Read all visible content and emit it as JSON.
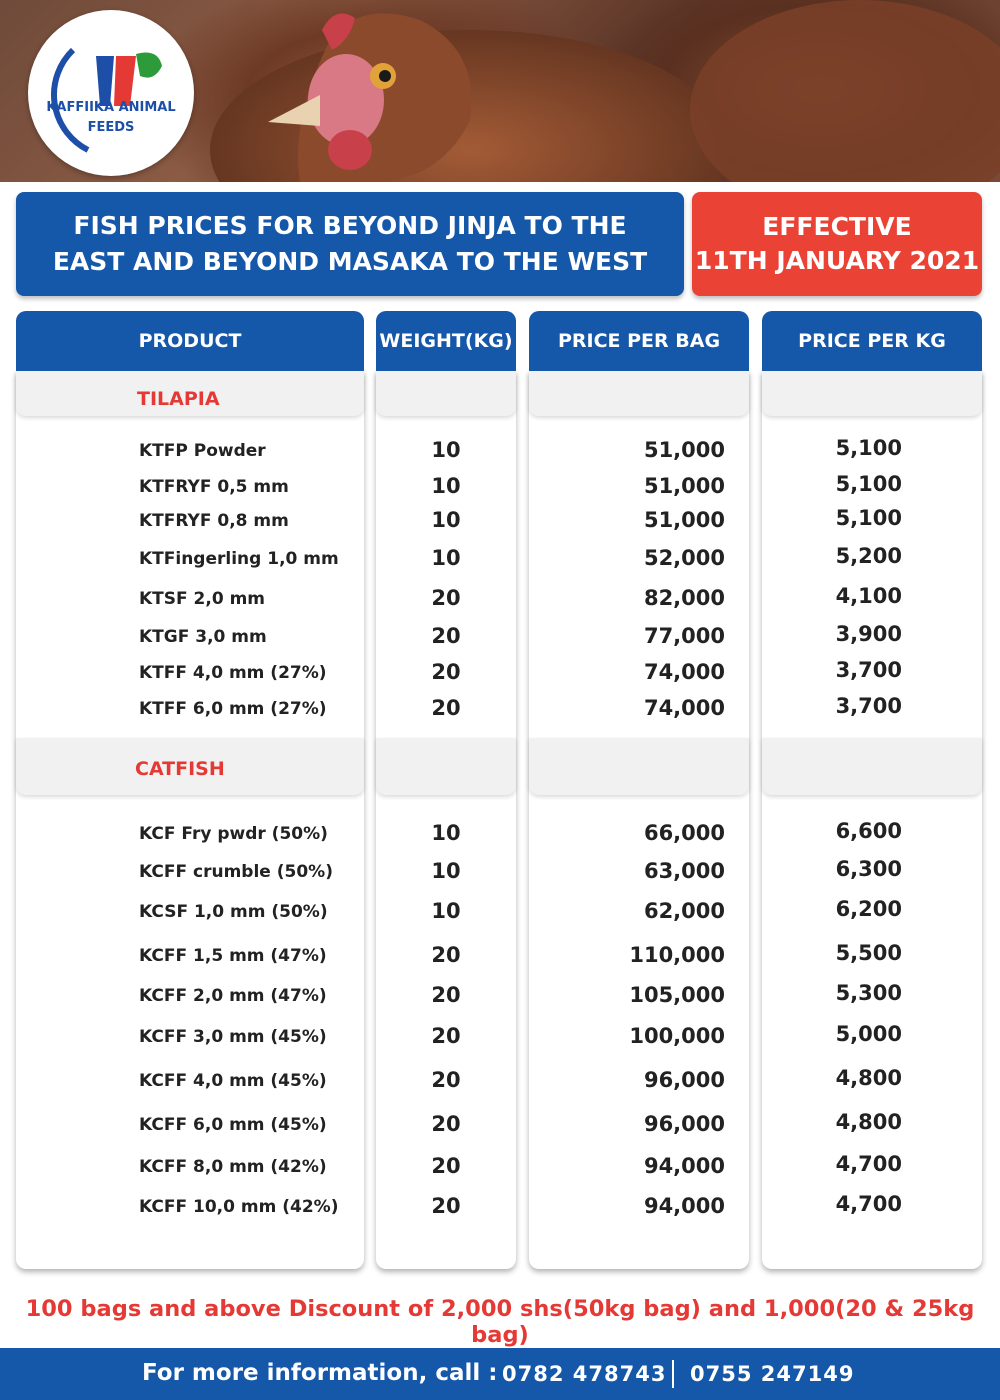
{
  "brand": {
    "line1": "KAFFIIKA ANIMAL",
    "line2": "FEEDS"
  },
  "title": {
    "line1": "FISH PRICES FOR BEYOND JINJA TO THE",
    "line2": "EAST AND BEYOND MASAKA TO THE WEST"
  },
  "effective": {
    "line1": "EFFECTIVE",
    "line2": "11TH JANUARY 2021"
  },
  "columns": {
    "product": "PRODUCT",
    "weight": "WEIGHT(KG)",
    "bag": "PRICE PER BAG",
    "kg": "PRICE PER KG"
  },
  "tilapia": {
    "label": "TILAPIA",
    "rows": [
      {
        "name": "KTFP Powder",
        "weight": "10",
        "bag": "51,000",
        "kg": "5,100"
      },
      {
        "name": "KTFRYF 0,5 mm",
        "weight": "10",
        "bag": "51,000",
        "kg": "5,100"
      },
      {
        "name": "KTFRYF 0,8 mm",
        "weight": "10",
        "bag": "51,000",
        "kg": "5,100"
      },
      {
        "name": "KTFingerling 1,0 mm",
        "weight": "10",
        "bag": "52,000",
        "kg": "5,200"
      },
      {
        "name": "KTSF 2,0 mm",
        "weight": "20",
        "bag": "82,000",
        "kg": "4,100"
      },
      {
        "name": "KTGF 3,0 mm",
        "weight": "20",
        "bag": "77,000",
        "kg": "3,900"
      },
      {
        "name": "KTFF 4,0 mm (27%)",
        "weight": "20",
        "bag": "74,000",
        "kg": "3,700"
      },
      {
        "name": "KTFF 6,0 mm (27%)",
        "weight": "20",
        "bag": "74,000",
        "kg": "3,700"
      }
    ]
  },
  "catfish": {
    "label": "CATFISH",
    "rows": [
      {
        "name": "KCF Fry pwdr (50%)",
        "weight": "10",
        "bag": "66,000",
        "kg": "6,600"
      },
      {
        "name": "KCFF crumble (50%)",
        "weight": "10",
        "bag": "63,000",
        "kg": "6,300"
      },
      {
        "name": "KCSF 1,0 mm (50%)",
        "weight": "10",
        "bag": "62,000",
        "kg": "6,200"
      },
      {
        "name": "KCFF 1,5 mm (47%)",
        "weight": "20",
        "bag": "110,000",
        "kg": "5,500"
      },
      {
        "name": "KCFF 2,0 mm (47%)",
        "weight": "20",
        "bag": "105,000",
        "kg": "5,300"
      },
      {
        "name": "KCFF 3,0 mm (45%)",
        "weight": "20",
        "bag": "100,000",
        "kg": "5,000"
      },
      {
        "name": "KCFF 4,0 mm (45%)",
        "weight": "20",
        "bag": "96,000",
        "kg": "4,800"
      },
      {
        "name": "KCFF 6,0 mm (45%)",
        "weight": "20",
        "bag": "96,000",
        "kg": "4,800"
      },
      {
        "name": "KCFF 8,0 mm (42%)",
        "weight": "20",
        "bag": "94,000",
        "kg": "4,700"
      },
      {
        "name": "KCFF 10,0 mm (42%)",
        "weight": "20",
        "bag": "94,000",
        "kg": "4,700"
      }
    ]
  },
  "discount": "100 bags and above Discount of 2,000 shs(50kg bag) and 1,000(20 & 25kg bag)",
  "footer": {
    "label": "For more information, call :",
    "phone1": "0782 478743",
    "phone2": "0755 247149"
  },
  "colors": {
    "brand_blue": "#1557a8",
    "accent_red": "#ea4335",
    "category_red": "#e53935"
  }
}
